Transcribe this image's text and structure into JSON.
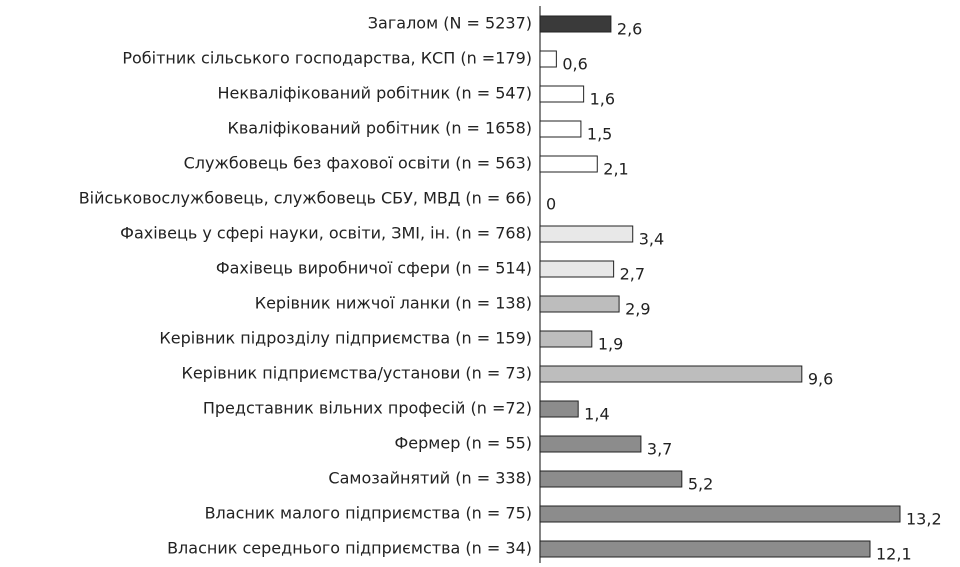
{
  "chart_data": {
    "type": "hbar",
    "categories": [
      "Загалом (N = 5237)",
      "Робітник сільського господарства, КСП (n =179)",
      "Некваліфікований робітник (n = 547)",
      "Кваліфікований робітник (n = 1658)",
      "Службовець без фахової освіти (n = 563)",
      "Військовослужбовець, службовець СБУ, МВД (n = 66)",
      "Фахівець у сфері науки, освіти, ЗМІ, ін. (n = 768)",
      "Фахівець виробничої сфери (n = 514)",
      "Керівник нижчої ланки (n = 138)",
      "Керівник підрозділу підприємства (n = 159)",
      "Керівник підприємства/установи (n = 73)",
      "Представник вільних професій (n =72)",
      "Фермер (n = 55)",
      "Самозайнятий (n = 338)",
      "Власник малого підприємства (n = 75)",
      "Власник середнього підприємства (n = 34)"
    ],
    "values": [
      2.6,
      0.6,
      1.6,
      1.5,
      2.1,
      0,
      3.4,
      2.7,
      2.9,
      1.9,
      9.6,
      1.4,
      3.7,
      5.2,
      13.2,
      12.1
    ],
    "value_labels": [
      "2,6",
      "0,6",
      "1,6",
      "1,5",
      "2,1",
      "0",
      "3,4",
      "2,7",
      "2,9",
      "1,9",
      "9,6",
      "1,4",
      "3,7",
      "5,2",
      "13,2",
      "12,1"
    ],
    "colors": [
      "#3a3a3a",
      "#ffffff",
      "#ffffff",
      "#ffffff",
      "#ffffff",
      "#ffffff",
      "#e8e8e8",
      "#e8e8e8",
      "#bdbdbd",
      "#bdbdbd",
      "#bdbdbd",
      "#8c8c8c",
      "#8c8c8c",
      "#8c8c8c",
      "#8c8c8c",
      "#8c8c8c"
    ]
  }
}
